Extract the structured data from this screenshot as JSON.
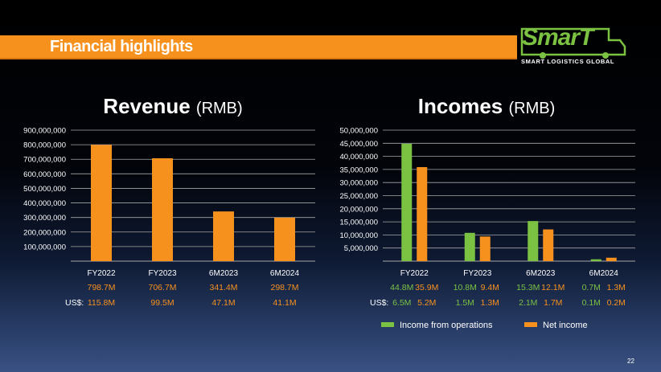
{
  "slide": {
    "banner_title": "Financial highlights",
    "logo_word": "SmarT",
    "logo_subtitle": "SMART LOGISTICS GLOBAL",
    "page_number": "22"
  },
  "colors": {
    "orange": "#f7911e",
    "green": "#7bc142",
    "axis_text": "#ffffff",
    "gridline": "#a6a6a6"
  },
  "chart_data": [
    {
      "type": "bar",
      "title": "Revenue",
      "title_unit": "(RMB)",
      "categories": [
        "FY2022",
        "FY2023",
        "6M2023",
        "6M2024"
      ],
      "series": [
        {
          "values": [
            798700000,
            706700000,
            341400000,
            298700000
          ],
          "color": "#f7911e"
        }
      ],
      "ylim": [
        0,
        900000000
      ],
      "yticks": [
        100000000,
        200000000,
        300000000,
        400000000,
        500000000,
        600000000,
        700000000,
        800000000,
        900000000
      ],
      "ytick_labels": [
        "100,000,000",
        "200,000,000",
        "300,000,000",
        "400,000,000",
        "500,000,000",
        "600,000,000",
        "700,000,000",
        "800,000,000",
        "900,000,000"
      ],
      "grid": true,
      "rmb_labels": [
        "798.7M",
        "706.7M",
        "341.4M",
        "298.7M"
      ],
      "usd_prefix": "US$:",
      "usd_labels": [
        "115.8M",
        "99.5M",
        "47.1M",
        "41.1M"
      ]
    },
    {
      "type": "bar",
      "title": "Incomes",
      "title_unit": "(RMB)",
      "categories": [
        "FY2022",
        "FY2023",
        "6M2023",
        "6M2024"
      ],
      "series": [
        {
          "name": "Income from operations",
          "values": [
            44800000,
            10800000,
            15300000,
            700000
          ],
          "color": "#7bc142"
        },
        {
          "name": "Net income",
          "values": [
            35900000,
            9400000,
            12100000,
            1300000
          ],
          "color": "#f7911e"
        }
      ],
      "ylim": [
        0,
        50000000
      ],
      "yticks": [
        5000000,
        10000000,
        15000000,
        20000000,
        25000000,
        30000000,
        35000000,
        40000000,
        45000000,
        50000000
      ],
      "ytick_labels": [
        "5,000,000",
        "10,000,000",
        "15,000,000",
        "20,000,000",
        "25,000,000",
        "30,000,000",
        "35,000,000",
        "40,000,000",
        "45,000,000",
        "50,000,000"
      ],
      "grid": true,
      "rmb_labels": [
        [
          "44.8M",
          "35.9M"
        ],
        [
          "10.8M",
          "9.4M"
        ],
        [
          "15.3M",
          "12.1M"
        ],
        [
          "0.7M",
          "1.3M"
        ]
      ],
      "usd_prefix": "US$:",
      "usd_labels": [
        [
          "6.5M",
          "5.2M"
        ],
        [
          "1.5M",
          "1.3M"
        ],
        [
          "2.1M",
          "1.7M"
        ],
        [
          "0.1M",
          "0.2M"
        ]
      ],
      "legend_position": "bottom"
    }
  ]
}
